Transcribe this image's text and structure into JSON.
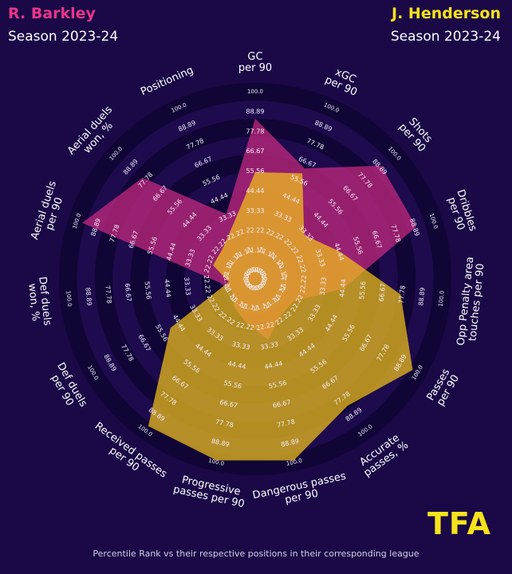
{
  "header": {
    "player1_name": "R. Barkley",
    "player1_season": "Season 2023-24",
    "player2_name": "J. Henderson",
    "player2_season": "Season 2023-24"
  },
  "footer_text": "Percentile Rank vs their respective positions in their corresponding league",
  "logo_text": "TFA",
  "colors": {
    "background": "#1a0847",
    "player1": "#b4267a",
    "player2": "#f2c21a",
    "player1_title": "#e8358a",
    "player2_title": "#f7e31c",
    "ring_dark": "#100535",
    "ring_light": "#1d0b4d"
  },
  "chart_data": {
    "type": "radar",
    "categories": [
      "GC\nper 90",
      "xGC\nper 90",
      "Shots\nper 90",
      "Dribbles\nper 90",
      "Opp Penalty area\ntouches per 90",
      "Passes\nper 90",
      "Accurate\npasses, %",
      "Dangerous passes\nper 90",
      "Progressive\npasses per 90",
      "Received passes\nper 90",
      "Def duels\nper 90",
      "Def duels\nwon, %",
      "Aerial duels\nper 90",
      "Aerial duels\nwon, %",
      "Positioning"
    ],
    "ring_labels": [
      "0.0",
      "11.11",
      "22.22",
      "33.33",
      "44.44",
      "55.56",
      "66.67",
      "77.78",
      "88.89",
      "100.0"
    ],
    "ylim": [
      0,
      100
    ],
    "series": [
      {
        "name": "R. Barkley",
        "values": [
          80,
          58,
          85,
          85,
          40,
          15,
          15,
          25,
          15,
          10,
          5,
          10,
          92,
          75,
          30
        ]
      },
      {
        "name": "J. Henderson",
        "values": [
          50,
          55,
          27,
          40,
          72,
          92,
          78,
          94,
          94,
          92,
          45,
          5,
          15,
          15,
          22
        ]
      }
    ]
  }
}
